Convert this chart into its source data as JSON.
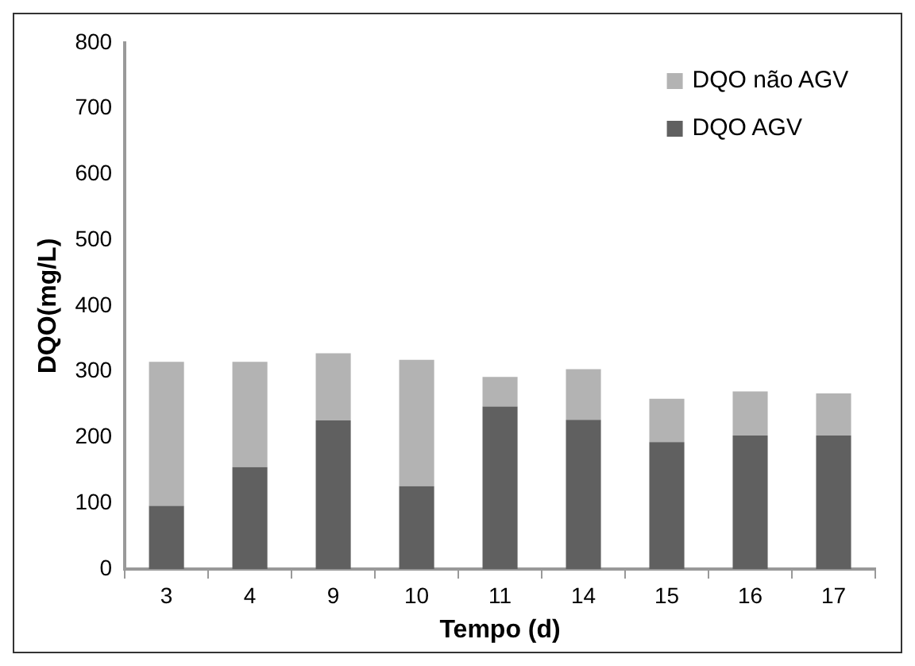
{
  "chart_data": {
    "type": "bar",
    "stacked": true,
    "xlabel": "Tempo (d)",
    "ylabel": "DQO(mg/L)",
    "categories": [
      "3",
      "4",
      "9",
      "10",
      "11",
      "14",
      "15",
      "16",
      "17"
    ],
    "series": [
      {
        "name": "DQO AGV",
        "color": "#606060",
        "values": [
          96,
          155,
          226,
          126,
          247,
          227,
          193,
          203,
          203
        ]
      },
      {
        "name": "DQO não AGV",
        "color": "#b3b3b3",
        "values": [
          219,
          160,
          102,
          192,
          45,
          77,
          66,
          67,
          64
        ]
      }
    ],
    "ylim": [
      0,
      800
    ],
    "yticks": [
      0,
      100,
      200,
      300,
      400,
      500,
      600,
      700,
      800
    ],
    "grid": false,
    "legend": "top right"
  }
}
